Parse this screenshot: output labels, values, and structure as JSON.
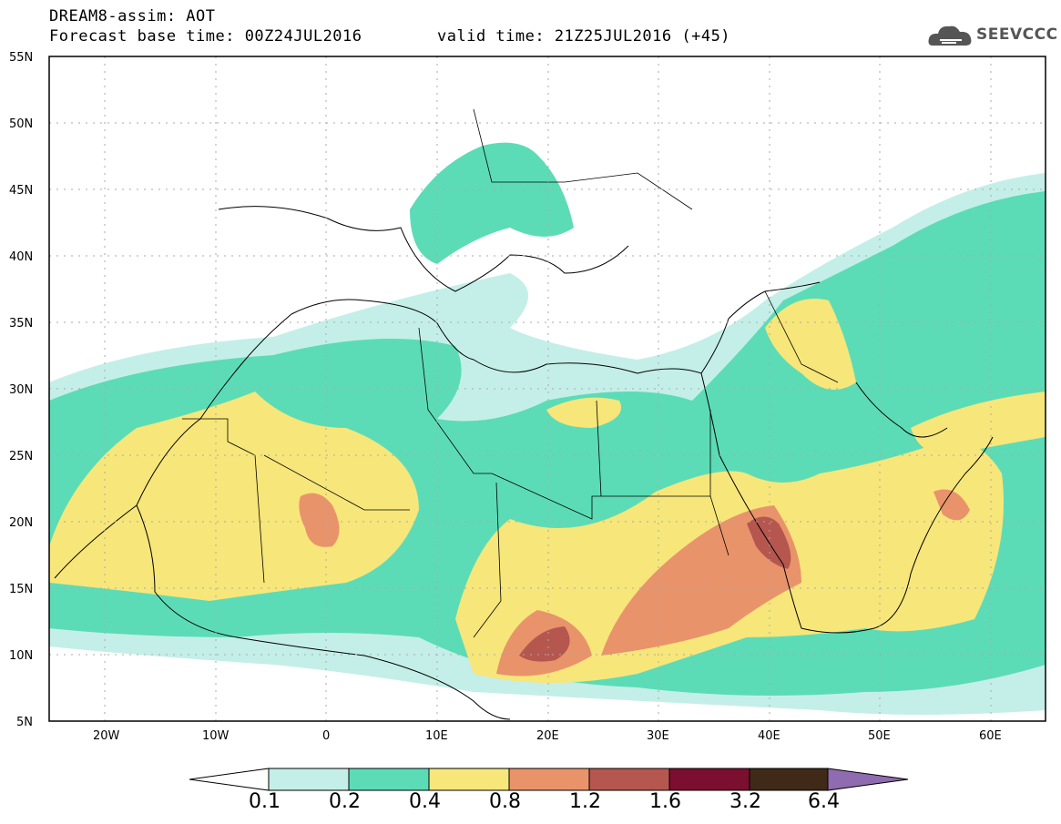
{
  "header": {
    "title": "DREAM8-assim: AOT",
    "base_time": "Forecast base time: 00Z24JUL2016",
    "valid_time": "valid time: 21Z25JUL2016 (+45)",
    "logo_text": "SEEVCCC"
  },
  "map": {
    "lat_labels": [
      "55N",
      "50N",
      "45N",
      "40N",
      "35N",
      "30N",
      "25N",
      "20N",
      "15N",
      "10N",
      "5N"
    ],
    "lon_labels": [
      "20W",
      "10W",
      "0",
      "10E",
      "20E",
      "30E",
      "40E",
      "50E",
      "60E"
    ]
  },
  "colorbar": {
    "labels": [
      "0.1",
      "0.2",
      "0.4",
      "0.8",
      "1.2",
      "1.6",
      "3.2",
      "6.4"
    ],
    "colors": [
      "#c4efe8",
      "#5cdcb6",
      "#f7e67a",
      "#e9936b",
      "#b5574f",
      "#7a0f2f",
      "#3e2a17",
      "#8f6bb0"
    ]
  }
}
